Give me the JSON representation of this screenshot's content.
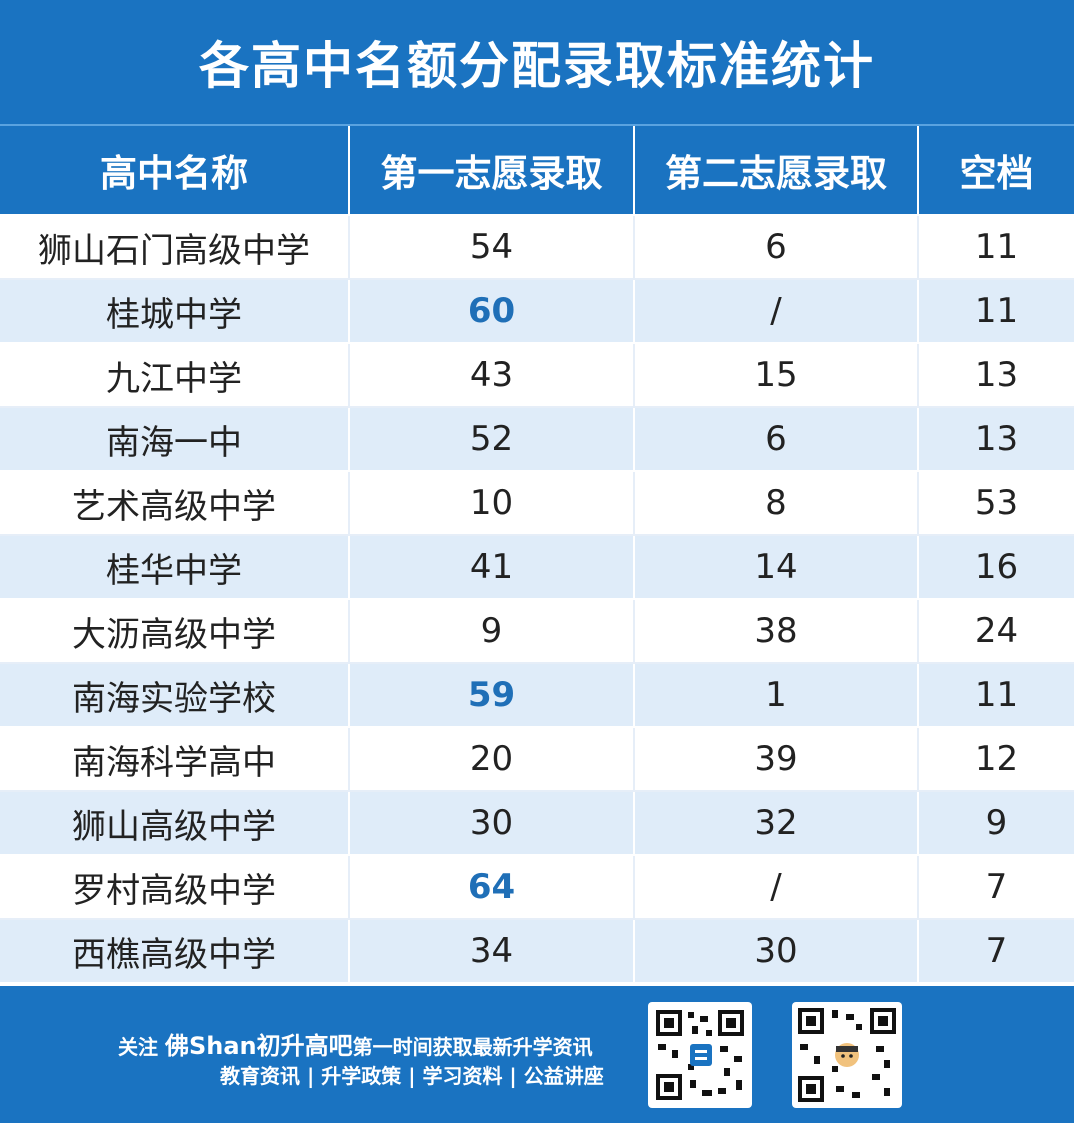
{
  "title": "各高中名额分配录取标准统计",
  "table": {
    "headers": [
      "高中名称",
      "第一志愿录取",
      "第二志愿录取",
      "空档"
    ],
    "rows": [
      {
        "name": "狮山石门高级中学",
        "first": "54",
        "second": "6",
        "vacancy": "11",
        "highlight": false
      },
      {
        "name": "桂城中学",
        "first": "60",
        "second": "/",
        "vacancy": "11",
        "highlight": true
      },
      {
        "name": "九江中学",
        "first": "43",
        "second": "15",
        "vacancy": "13",
        "highlight": false
      },
      {
        "name": "南海一中",
        "first": "52",
        "second": "6",
        "vacancy": "13",
        "highlight": false
      },
      {
        "name": "艺术高级中学",
        "first": "10",
        "second": "8",
        "vacancy": "53",
        "highlight": false
      },
      {
        "name": "桂华中学",
        "first": "41",
        "second": "14",
        "vacancy": "16",
        "highlight": false
      },
      {
        "name": "大沥高级中学",
        "first": "9",
        "second": "38",
        "vacancy": "24",
        "highlight": false
      },
      {
        "name": "南海实验学校",
        "first": "59",
        "second": "1",
        "vacancy": "11",
        "highlight": true
      },
      {
        "name": "南海科学高中",
        "first": "20",
        "second": "39",
        "vacancy": "12",
        "highlight": false
      },
      {
        "name": "狮山高级中学",
        "first": "30",
        "second": "32",
        "vacancy": "9",
        "highlight": false
      },
      {
        "name": "罗村高级中学",
        "first": "64",
        "second": "/",
        "vacancy": "7",
        "highlight": true
      },
      {
        "name": "西樵高级中学",
        "first": "34",
        "second": "30",
        "vacancy": "7",
        "highlight": false
      }
    ]
  },
  "footer": {
    "follow": "关注",
    "brand": "佛Shan初升高吧",
    "tagline": "第一时间获取最新升学资讯",
    "topics": "教育资讯 | 升学政策 | 学习资料 | 公益讲座"
  },
  "colors": {
    "primary": "#1a73c1",
    "stripe": "#dfecf9",
    "highlight": "#1f6fb7"
  },
  "icons": [
    "qr-code-icon",
    "qr-code-icon"
  ]
}
